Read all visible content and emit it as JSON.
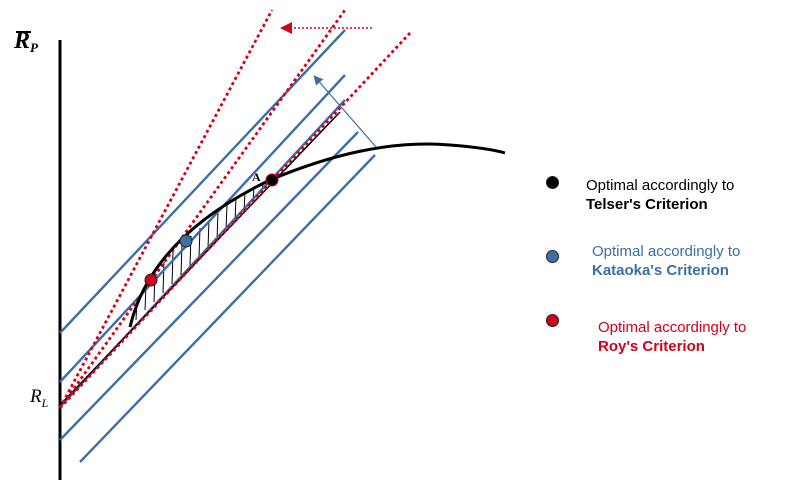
{
  "axes": {
    "y_label_main": "R",
    "y_label_sub": "P",
    "origin_label_main": "R",
    "origin_label_sub": "L"
  },
  "markers": {
    "point_a_label": "A"
  },
  "legend": [
    {
      "line1": "Optimal accordingly to",
      "line2": "Telser's Criterion",
      "color": "#000000",
      "text_color": "#000000",
      "strong_color": "#000000"
    },
    {
      "line1": "Optimal accordingly to",
      "line2": "Kataoka's Criterion",
      "color": "#3d6ea5",
      "text_color": "#3d6ea5",
      "strong_color": "#3d6ea5"
    },
    {
      "line1": "Optimal accordingly to",
      "line2": "Roy's Criterion",
      "color": "#d0021b",
      "text_color": "#d0021b",
      "strong_color": "#d0021b"
    }
  ],
  "colors": {
    "iso_lines": "#3d6ea5",
    "roy_lines": "#d0021b",
    "frontier": "#000000"
  }
}
